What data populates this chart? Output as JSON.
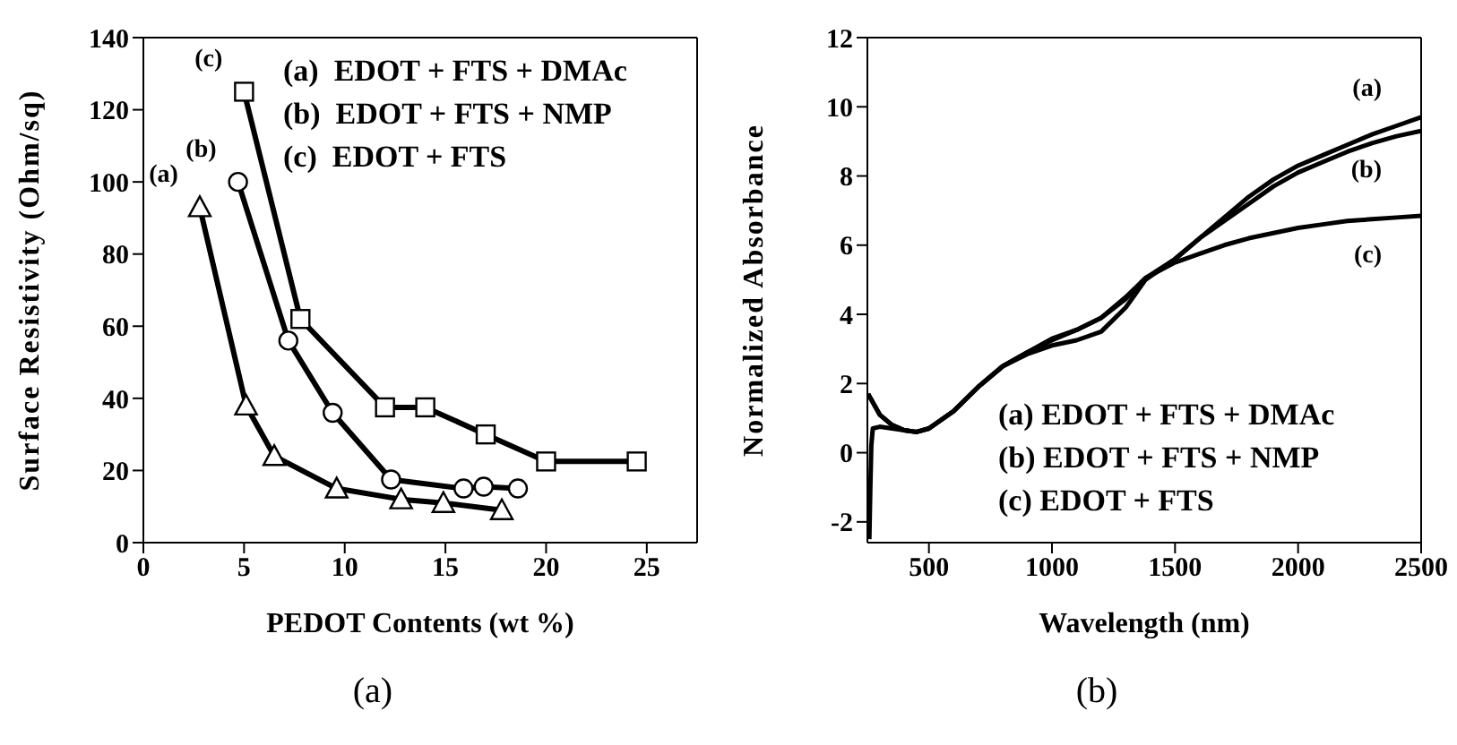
{
  "chart_data": [
    {
      "type": "line",
      "xlabel": "PEDOT Contents (wt %)",
      "ylabel": "Surface Resistivity (Ohm/sq)",
      "xlim": [
        0,
        27.5
      ],
      "xticks": [
        0,
        5,
        10,
        15,
        20,
        25
      ],
      "ylim": [
        0,
        140
      ],
      "yticks": [
        0,
        20,
        40,
        60,
        80,
        100,
        120,
        140
      ],
      "grid": false,
      "annotations": [
        "(a)  EDOT + FTS + DMAc",
        "(b)  EDOT + FTS + NMP",
        "(c)  EDOT + FTS",
        "(a)"
      ],
      "series": [
        {
          "name": "(a)",
          "color": "#000000",
          "marker": "triangle",
          "x": [
            2.8,
            5.1,
            6.5,
            9.6,
            12.8,
            14.9,
            17.8
          ],
          "values": [
            93,
            38,
            24,
            15,
            12,
            11,
            9
          ]
        },
        {
          "name": "(b)",
          "color": "#000000",
          "marker": "circle",
          "x": [
            4.7,
            7.2,
            9.4,
            12.3,
            15.9,
            16.9,
            18.6
          ],
          "values": [
            100,
            56,
            36,
            17.5,
            15,
            15.5,
            15
          ]
        },
        {
          "name": "(c)",
          "color": "#000000",
          "marker": "square",
          "x": [
            5.0,
            7.8,
            12.0,
            14.0,
            17.0,
            20.0,
            24.5
          ],
          "values": [
            125,
            62,
            37.5,
            37.5,
            30,
            22.5,
            22.5
          ]
        }
      ]
    },
    {
      "type": "line",
      "xlabel": "Wavelength (nm)",
      "ylabel": "Normalized Absorbance",
      "xlim": [
        250,
        2500
      ],
      "xticks": [
        500,
        1000,
        1500,
        2000,
        2500
      ],
      "ylim": [
        -2.6,
        12
      ],
      "yticks": [
        -2,
        0,
        2,
        4,
        6,
        8,
        10,
        12
      ],
      "grid": false,
      "marker": "none",
      "annotations": [
        "(a) EDOT + FTS + DMAc",
        "(b) EDOT + FTS + NMP",
        "(c) EDOT + FTS",
        "(b)"
      ],
      "series": [
        {
          "name": "(a)",
          "color": "#000000",
          "x": [
            253,
            300,
            350,
            400,
            450,
            500,
            600,
            700,
            800,
            900,
            1000,
            1100,
            1200,
            1300,
            1380,
            1500,
            1600,
            1700,
            1800,
            1900,
            2000,
            2100,
            2200,
            2300,
            2400,
            2500
          ],
          "values": [
            1.7,
            1.1,
            0.8,
            0.65,
            0.6,
            0.7,
            1.2,
            1.9,
            2.5,
            2.9,
            3.3,
            3.55,
            3.9,
            4.45,
            5.05,
            5.6,
            6.2,
            6.8,
            7.4,
            7.9,
            8.3,
            8.6,
            8.9,
            9.2,
            9.45,
            9.7
          ]
        },
        {
          "name": "(b)",
          "color": "#000000",
          "x": [
            253,
            300,
            350,
            400,
            450,
            500,
            600,
            700,
            800,
            900,
            1000,
            1100,
            1200,
            1300,
            1380,
            1500,
            1600,
            1700,
            1800,
            1900,
            2000,
            2100,
            2200,
            2300,
            2400,
            2500
          ],
          "values": [
            1.7,
            1.1,
            0.8,
            0.65,
            0.6,
            0.7,
            1.2,
            1.9,
            2.5,
            2.85,
            3.1,
            3.25,
            3.5,
            4.2,
            5.0,
            5.6,
            6.2,
            6.7,
            7.2,
            7.7,
            8.1,
            8.4,
            8.7,
            8.95,
            9.15,
            9.3
          ]
        },
        {
          "name": "(c)",
          "color": "#000000",
          "x": [
            258,
            262,
            266,
            272,
            300,
            350,
            400,
            450,
            500,
            600,
            700,
            800,
            900,
            1000,
            1100,
            1200,
            1300,
            1380,
            1500,
            1600,
            1700,
            1800,
            1900,
            2000,
            2100,
            2200,
            2300,
            2400,
            2500
          ],
          "values": [
            -2.5,
            -1,
            0.2,
            0.7,
            0.75,
            0.7,
            0.65,
            0.6,
            0.7,
            1.2,
            1.9,
            2.5,
            2.9,
            3.25,
            3.55,
            3.9,
            4.5,
            5.05,
            5.5,
            5.75,
            6.0,
            6.2,
            6.35,
            6.5,
            6.6,
            6.7,
            6.75,
            6.8,
            6.85
          ]
        }
      ]
    }
  ]
}
